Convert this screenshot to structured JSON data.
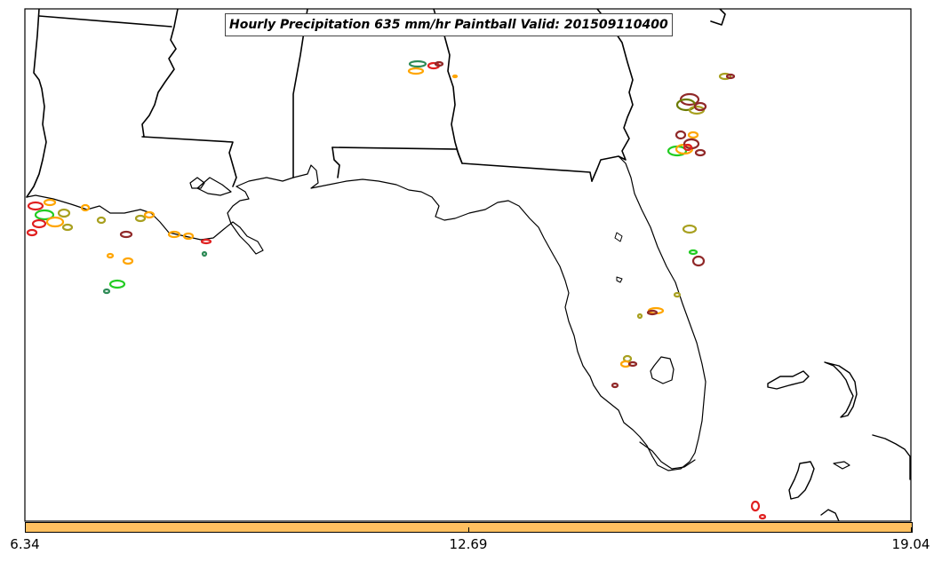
{
  "title": "Hourly Precipitation 635 mm/hr Paintball Valid: 201509110400",
  "colorbar": {
    "color": "#ffc060",
    "tick_labels": [
      "6.34",
      "12.69",
      "19.04"
    ]
  },
  "paintball_colors": {
    "orange": "#ffa500",
    "red": "#e02020",
    "green": "#22cc22",
    "olive": "#a8a020",
    "dark_red": "#902828",
    "sea_green": "#2e8b57",
    "dark_olive": "#6b7a00"
  }
}
